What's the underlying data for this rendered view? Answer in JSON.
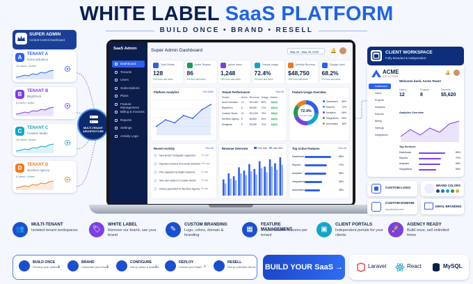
{
  "header": {
    "title_part1": "WHITE LABEL",
    "title_part2": "SaaS PLATFORM",
    "subtitle": "BUILD ONCE • BRAND • RESELL"
  },
  "super_admin": {
    "title": "SUPER ADMIN",
    "subtitle": "Central Control Dashboard"
  },
  "tenants": [
    {
      "badge": "A",
      "name": "TENANT A",
      "desc": "Acme Solutions",
      "users": "12 Users",
      "status": "Active",
      "color": "#2d5ff0"
    },
    {
      "badge": "B",
      "name": "TENANT B",
      "desc": "BrightTech",
      "users": "8 Users",
      "status": "Active",
      "color": "#7b3fe4"
    },
    {
      "badge": "C",
      "name": "TENANT C",
      "desc": "Creative Studio",
      "users": "10 Users",
      "status": "Active",
      "color": "#12a5c9"
    },
    {
      "badge": "D",
      "name": "TENANT D",
      "desc": "NextGen Agency",
      "users": "6 Users",
      "status": "Active",
      "color": "#f07a1a"
    }
  ],
  "hub": {
    "line1": "MULTI-TENANT",
    "line2": "ARCHITECTURE"
  },
  "dashboard": {
    "brand": "SaaS Admin",
    "title": "Super Admin Dashboard",
    "date_range": "May 20 - May 26, 2025",
    "menu": [
      "Dashboard",
      "Tenants",
      "Users",
      "Subscriptions",
      "Plans",
      "Feature Management",
      "Billing & Invoices",
      "Reports",
      "Settings",
      "Activity Logs"
    ],
    "kpis": [
      {
        "label": "Total Clients",
        "value": "128",
        "delta": "12% from last week",
        "color": "#2d5ff0"
      },
      {
        "label": "Active Tenants",
        "value": "86",
        "delta": "8% from last week",
        "color": "#1e9a56"
      },
      {
        "label": "Active Users",
        "value": "1,248",
        "delta": "15% from last week",
        "color": "#7b3fe4"
      },
      {
        "label": "Feature Usage",
        "value": "72.4%",
        "delta": "9% from last week",
        "color": "#12a5c9"
      },
      {
        "label": "Monthly Revenue",
        "value": "$48,750",
        "delta": "18% from last week",
        "color": "#f07a1a"
      },
      {
        "label": "Storage Used",
        "value": "68.2%",
        "delta": "6% from last week",
        "color": "#2d5ff0"
      }
    ],
    "platform_analytics": {
      "title": "Platform Analytics",
      "range": "This Week"
    },
    "tenant_performance": {
      "title": "Tenant Performance",
      "link": "View All",
      "columns": [
        "Tenant",
        "Users",
        "Revenue",
        "Usage",
        "Status"
      ],
      "rows": [
        [
          "Acme Solutions",
          "12",
          "$12,450",
          "85%",
          "Active"
        ],
        [
          "BrightTech",
          "8",
          "$8,950",
          "72%",
          "Active"
        ],
        [
          "Creative Studio",
          "10",
          "$10,200",
          "78%",
          "Active"
        ],
        [
          "NextGen Agency",
          "6",
          "$6,800",
          "64%",
          "Active"
        ],
        [
          "Designlab",
          "9",
          "$9,350",
          "70%",
          "Active"
        ]
      ]
    },
    "feature_usage": {
      "title": "Feature Usage Overview",
      "center_value": "72.4%",
      "center_label": "Average Usage",
      "items": [
        {
          "name": "Dashboard",
          "value": "85%",
          "color": "#2d5ff0"
        },
        {
          "name": "Reports",
          "value": "72%",
          "color": "#12a5c9"
        },
        {
          "name": "Analytics",
          "value": "68%",
          "color": "#7b3fe4"
        },
        {
          "name": "Integrations",
          "value": "55%",
          "color": "#1e9a56"
        },
        {
          "name": "Automation",
          "value": "48%",
          "color": "#f07a1a"
        }
      ]
    },
    "recent_activity": {
      "title": "Recent Activity",
      "link": "View All",
      "items": [
        {
          "text": "New tenant \"Designlab\" registered",
          "time": "2m ago"
        },
        {
          "text": "Payment received from Acme Solutions",
          "time": "15m ago"
        },
        {
          "text": "Plan upgraded by Bright Solutions",
          "time": "1h ago"
        },
        {
          "text": "New user added to Creative Studio",
          "time": "3h ago"
        },
        {
          "text": "Invoice generated for NextGen Agency",
          "time": "5h ago"
        }
      ]
    },
    "revenue_overview": {
      "title": "Revenue Overview",
      "legend": [
        "This Year",
        "Last Year"
      ]
    },
    "top_features": {
      "title": "Top Active Features",
      "link": "View All",
      "items": [
        {
          "name": "Dashboard",
          "value": "85%",
          "pct": 85
        },
        {
          "name": "Reports",
          "value": "72%",
          "pct": 72
        },
        {
          "name": "Analytics",
          "value": "68%",
          "pct": 68
        },
        {
          "name": "Integrations",
          "value": "55%",
          "pct": 55
        },
        {
          "name": "Automation",
          "value": "48%",
          "pct": 48
        }
      ]
    }
  },
  "chart_data": [
    {
      "type": "line",
      "title": "Platform Analytics",
      "x": [
        "Mon",
        "Tue",
        "Wed",
        "Thu",
        "Fri",
        "Sat",
        "Sun"
      ],
      "values": [
        20,
        35,
        28,
        45,
        38,
        58,
        70
      ]
    },
    {
      "type": "bar",
      "title": "Revenue Overview",
      "categories": [
        "Jan",
        "Feb",
        "Mar",
        "Apr",
        "May",
        "Jun",
        "Jul",
        "Aug",
        "Sep",
        "Oct",
        "Nov",
        "Dec"
      ],
      "series": [
        {
          "name": "This Year",
          "values": [
            40,
            55,
            48,
            70,
            62,
            78,
            66,
            85,
            72,
            90,
            80,
            95
          ]
        },
        {
          "name": "Last Year",
          "values": [
            30,
            42,
            38,
            55,
            50,
            60,
            52,
            68,
            58,
            72,
            64,
            76
          ]
        }
      ]
    },
    {
      "type": "pie",
      "title": "Feature Usage Overview",
      "categories": [
        "Dashboard",
        "Reports",
        "Analytics",
        "Integrations",
        "Automation"
      ],
      "values": [
        85,
        72,
        68,
        55,
        48
      ]
    }
  ],
  "workspace": {
    "title": "CLIENT WORKSPACE",
    "subtitle": "Fully Branded & Independent",
    "logo": "ACME",
    "logo_sub": "SOLUTIONS",
    "menu": [
      "Dashboard",
      "Users",
      "Projects",
      "Analytics",
      "Reports",
      "Billing",
      "Settings",
      "Integrations"
    ],
    "welcome": "Welcome back, Acme Team!",
    "stats": [
      {
        "label": "Users",
        "value": "12"
      },
      {
        "label": "Projects",
        "value": "8"
      },
      {
        "label": "Revenue",
        "value": "$5,620"
      }
    ],
    "overview": "Analytics Overview",
    "top_services": "Top Services",
    "services": [
      {
        "name": "Dashboard",
        "value": "85%"
      },
      {
        "name": "Reports",
        "value": "72%"
      },
      {
        "name": "Analytics",
        "value": "68%"
      },
      {
        "name": "Integrations",
        "value": "55%"
      }
    ]
  },
  "brand_cards": {
    "custom_logo": "CUSTOM LOGO",
    "brand_colors": "BRAND COLORS",
    "custom_domain": "CUSTOM DOMAIN",
    "domain_value": "yourbrand.com",
    "email_branding": "EMAIL BRANDING",
    "swatches": [
      "#1e3a8a",
      "#2d5ff0",
      "#12a5c9",
      "#1e9a56",
      "#f5a623"
    ]
  },
  "features": [
    {
      "title": "MULTI-TENANT",
      "desc": "Isolated tenant workspaces",
      "color": "#1b4fcf"
    },
    {
      "title": "WHITE LABEL",
      "desc": "Remove our brand, use your brand",
      "color": "#7b3fe4"
    },
    {
      "title": "CUSTOM BRANDING",
      "desc": "Logo, colors, domain & branding",
      "color": "#1b4fcf"
    },
    {
      "title": "FEATURE MANAGEMENT",
      "desc": "Enable/disable features per tenant",
      "color": "#1b4fcf"
    },
    {
      "title": "CLIENT PORTALS",
      "desc": "Independent portals for your clients",
      "color": "#12a5c9"
    },
    {
      "title": "AGENCY READY",
      "desc": "Build once, sell unlimited times",
      "color": "#7b3fe4"
    }
  ],
  "steps": [
    {
      "title": "BUILD ONCE",
      "desc": "Develop your platform"
    },
    {
      "title": "BRAND",
      "desc": "Customize your brand"
    },
    {
      "title": "CONFIGURE",
      "desc": "Set up plans & features"
    },
    {
      "title": "DEPLOY",
      "desc": "Launch your SaaS"
    },
    {
      "title": "RESELL",
      "desc": "Sell to unlimited clients"
    }
  ],
  "cta": "BUILD YOUR SaaS →",
  "tech": [
    "Laravel",
    "React",
    "MySQL"
  ]
}
